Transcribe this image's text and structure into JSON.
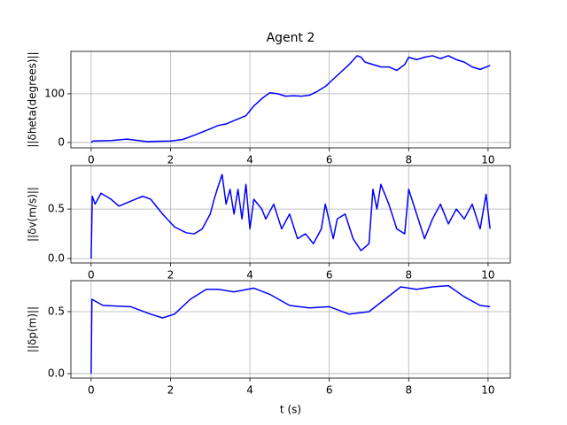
{
  "chart_data": [
    {
      "type": "line",
      "title": "Agent 2",
      "ylabel": "||δheta(degrees)||",
      "x": [
        0,
        0.05,
        0.5,
        0.9,
        1.4,
        2,
        2.3,
        2.6,
        3.0,
        3.2,
        3.4,
        3.6,
        3.9,
        4.1,
        4.3,
        4.5,
        4.7,
        4.9,
        5.1,
        5.3,
        5.5,
        5.7,
        5.9,
        6.1,
        6.3,
        6.5,
        6.7,
        6.8,
        6.9,
        7.1,
        7.3,
        7.5,
        7.7,
        7.9,
        8.0,
        8.2,
        8.4,
        8.6,
        8.8,
        9.0,
        9.2,
        9.4,
        9.6,
        9.8,
        10.05
      ],
      "series": [
        {
          "color": "#0000ff",
          "values": [
            0,
            3,
            4,
            7,
            2,
            3,
            6,
            15,
            28,
            35,
            38,
            45,
            55,
            75,
            90,
            102,
            100,
            95,
            96,
            95,
            97,
            105,
            115,
            130,
            145,
            160,
            178,
            175,
            165,
            160,
            155,
            155,
            148,
            160,
            175,
            170,
            175,
            178,
            172,
            178,
            170,
            165,
            155,
            150,
            158
          ]
        }
      ],
      "xlim": [
        -0.51,
        10.56
      ],
      "ylim": [
        -11,
        187
      ],
      "xticks": [
        0,
        2,
        4,
        6,
        8,
        10
      ],
      "yticks": [
        0,
        100
      ],
      "grid": true
    },
    {
      "type": "line",
      "ylabel": "||δv(m/s)||",
      "x": [
        0,
        0.03,
        0.1,
        0.25,
        0.5,
        0.7,
        1.0,
        1.3,
        1.5,
        1.8,
        2.1,
        2.4,
        2.6,
        2.8,
        3.0,
        3.1,
        3.2,
        3.3,
        3.4,
        3.5,
        3.6,
        3.7,
        3.8,
        3.9,
        4.0,
        4.1,
        4.3,
        4.4,
        4.6,
        4.8,
        5.0,
        5.2,
        5.4,
        5.6,
        5.8,
        5.9,
        6.1,
        6.2,
        6.4,
        6.6,
        6.8,
        7.0,
        7.1,
        7.2,
        7.3,
        7.5,
        7.7,
        7.9,
        8.0,
        8.2,
        8.4,
        8.6,
        8.8,
        9.0,
        9.2,
        9.4,
        9.6,
        9.8,
        9.95,
        10.05
      ],
      "series": [
        {
          "color": "#0000ff",
          "values": [
            0,
            0.63,
            0.55,
            0.66,
            0.6,
            0.53,
            0.58,
            0.63,
            0.6,
            0.45,
            0.32,
            0.26,
            0.25,
            0.3,
            0.45,
            0.6,
            0.73,
            0.85,
            0.55,
            0.7,
            0.45,
            0.7,
            0.4,
            0.75,
            0.3,
            0.6,
            0.5,
            0.4,
            0.55,
            0.3,
            0.45,
            0.2,
            0.25,
            0.15,
            0.3,
            0.55,
            0.2,
            0.4,
            0.45,
            0.2,
            0.08,
            0.15,
            0.7,
            0.5,
            0.75,
            0.55,
            0.3,
            0.25,
            0.7,
            0.45,
            0.2,
            0.4,
            0.55,
            0.35,
            0.5,
            0.4,
            0.55,
            0.3,
            0.65,
            0.3
          ]
        }
      ],
      "xlim": [
        -0.51,
        10.56
      ],
      "ylim": [
        -0.045,
        0.94
      ],
      "xticks": [
        0,
        2,
        4,
        6,
        8,
        10
      ],
      "yticks": [
        {
          "value": 0,
          "label": "0.0"
        },
        0.5
      ],
      "grid": true
    },
    {
      "type": "line",
      "ylabel": "||δp(m)||",
      "xlabel": "t (s)",
      "x": [
        0,
        0.02,
        0.3,
        1,
        1.5,
        1.8,
        2.1,
        2.5,
        2.9,
        3.2,
        3.6,
        4.1,
        4.5,
        5,
        5.5,
        6,
        6.5,
        7,
        7.4,
        7.8,
        8.2,
        8.6,
        9,
        9.4,
        9.8,
        10.05
      ],
      "series": [
        {
          "color": "#0000ff",
          "values": [
            0,
            0.6,
            0.55,
            0.54,
            0.48,
            0.45,
            0.48,
            0.6,
            0.68,
            0.68,
            0.66,
            0.69,
            0.64,
            0.55,
            0.53,
            0.54,
            0.48,
            0.5,
            0.6,
            0.7,
            0.68,
            0.7,
            0.71,
            0.62,
            0.55,
            0.54
          ]
        }
      ],
      "xlim": [
        -0.51,
        10.56
      ],
      "ylim": [
        -0.036,
        0.75
      ],
      "xticks": [
        0,
        2,
        4,
        6,
        8,
        10
      ],
      "yticks": [
        {
          "value": 0,
          "label": "0.0"
        },
        0.5
      ],
      "grid": true
    }
  ]
}
